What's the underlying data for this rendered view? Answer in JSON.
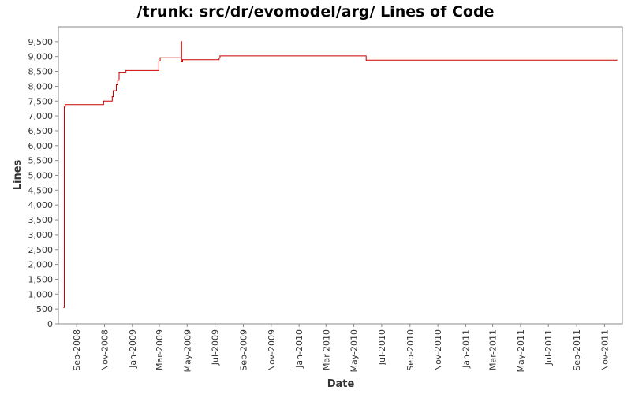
{
  "chart_data": {
    "type": "line",
    "title": "/trunk: src/dr/evomodel/arg/ Lines of Code",
    "xlabel": "Date",
    "ylabel": "Lines",
    "xlim": [
      "2008-07-23",
      "2011-12-10"
    ],
    "ylim": [
      0,
      10000
    ],
    "grid": false,
    "legend": "none",
    "y_ticks": [
      "0",
      "500",
      "1,000",
      "1,500",
      "2,000",
      "2,500",
      "3,000",
      "3,500",
      "4,000",
      "4,500",
      "5,000",
      "5,500",
      "6,000",
      "6,500",
      "7,000",
      "7,500",
      "8,000",
      "8,500",
      "9,000",
      "9,500"
    ],
    "x_ticks": [
      {
        "date": "2008-09-01",
        "label": "Sep-2008"
      },
      {
        "date": "2008-11-01",
        "label": "Nov-2008"
      },
      {
        "date": "2009-01-01",
        "label": "Jan-2009"
      },
      {
        "date": "2009-03-01",
        "label": "Mar-2009"
      },
      {
        "date": "2009-05-01",
        "label": "May-2009"
      },
      {
        "date": "2009-07-01",
        "label": "Jul-2009"
      },
      {
        "date": "2009-09-01",
        "label": "Sep-2009"
      },
      {
        "date": "2009-11-01",
        "label": "Nov-2009"
      },
      {
        "date": "2010-01-01",
        "label": "Jan-2010"
      },
      {
        "date": "2010-03-01",
        "label": "Mar-2010"
      },
      {
        "date": "2010-05-01",
        "label": "May-2010"
      },
      {
        "date": "2010-07-01",
        "label": "Jul-2010"
      },
      {
        "date": "2010-09-01",
        "label": "Sep-2010"
      },
      {
        "date": "2010-11-01",
        "label": "Nov-2010"
      },
      {
        "date": "2011-01-01",
        "label": "Jan-2011"
      },
      {
        "date": "2011-03-01",
        "label": "Mar-2011"
      },
      {
        "date": "2011-05-01",
        "label": "May-2011"
      },
      {
        "date": "2011-07-01",
        "label": "Jul-2011"
      },
      {
        "date": "2011-09-01",
        "label": "Sep-2011"
      },
      {
        "date": "2011-11-01",
        "label": "Nov-2011"
      }
    ],
    "series": [
      {
        "color": "#cc0000",
        "step": true,
        "points": [
          {
            "x": "2008-08-04",
            "y": 550
          },
          {
            "x": "2008-08-05",
            "y": 7300
          },
          {
            "x": "2008-08-07",
            "y": 7380
          },
          {
            "x": "2008-10-30",
            "y": 7500
          },
          {
            "x": "2008-11-18",
            "y": 7650
          },
          {
            "x": "2008-11-20",
            "y": 7850
          },
          {
            "x": "2008-11-27",
            "y": 8050
          },
          {
            "x": "2008-11-30",
            "y": 8200
          },
          {
            "x": "2008-12-03",
            "y": 8450
          },
          {
            "x": "2008-12-18",
            "y": 8530
          },
          {
            "x": "2009-02-28",
            "y": 8850
          },
          {
            "x": "2009-03-03",
            "y": 8960
          },
          {
            "x": "2009-04-18",
            "y": 9500
          },
          {
            "x": "2009-04-19",
            "y": 8820
          },
          {
            "x": "2009-04-21",
            "y": 8890
          },
          {
            "x": "2009-07-10",
            "y": 8950
          },
          {
            "x": "2009-07-12",
            "y": 9020
          },
          {
            "x": "2010-05-28",
            "y": 8880
          },
          {
            "x": "2011-11-28",
            "y": 8880
          }
        ]
      }
    ]
  }
}
